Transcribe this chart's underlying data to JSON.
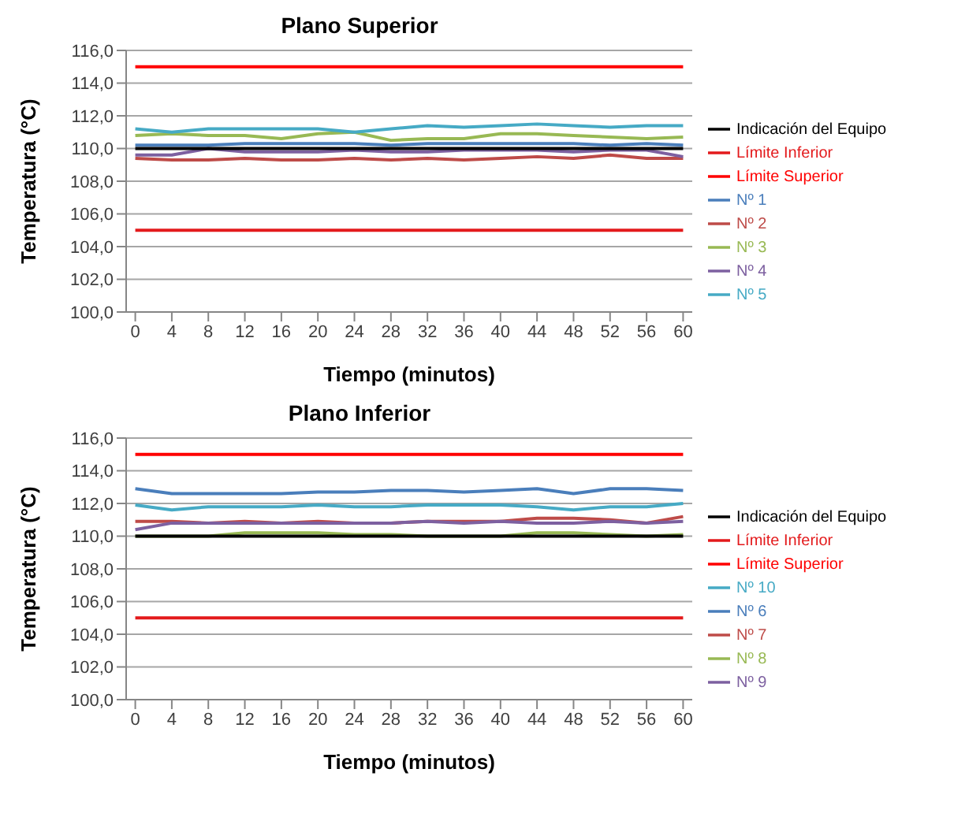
{
  "chart_data": [
    {
      "type": "line",
      "title": "Plano Superior",
      "xlabel": "Tiempo (minutos)",
      "ylabel": "Temperatura (°C)",
      "x": [
        0,
        4,
        8,
        12,
        16,
        20,
        24,
        28,
        32,
        36,
        40,
        44,
        48,
        52,
        56,
        60
      ],
      "xlim": [
        -1,
        61
      ],
      "xticks": [
        0,
        4,
        8,
        12,
        16,
        20,
        24,
        28,
        32,
        36,
        40,
        44,
        48,
        52,
        56,
        60
      ],
      "ylim": [
        100,
        116
      ],
      "yticks": [
        {
          "value": 100,
          "label": "100,0"
        },
        {
          "value": 102,
          "label": "102,0"
        },
        {
          "value": 104,
          "label": "104,0"
        },
        {
          "value": 106,
          "label": "106,0"
        },
        {
          "value": 108,
          "label": "108,0"
        },
        {
          "value": 110,
          "label": "110,0"
        },
        {
          "value": 112,
          "label": "112,0"
        },
        {
          "value": 114,
          "label": "114,0"
        },
        {
          "value": 116,
          "label": "116,0"
        }
      ],
      "grid": "y",
      "legend": "right",
      "series": [
        {
          "name": "Nº 1",
          "color": "#4a7ebb",
          "values": [
            110.2,
            110.2,
            110.2,
            110.3,
            110.3,
            110.3,
            110.3,
            110.2,
            110.3,
            110.3,
            110.3,
            110.3,
            110.3,
            110.2,
            110.3,
            110.2
          ]
        },
        {
          "name": "Nº 2",
          "color": "#be4b48",
          "values": [
            109.4,
            109.3,
            109.3,
            109.4,
            109.3,
            109.3,
            109.4,
            109.3,
            109.4,
            109.3,
            109.4,
            109.5,
            109.4,
            109.6,
            109.4,
            109.4
          ]
        },
        {
          "name": "Nº 3",
          "color": "#98b954",
          "values": [
            110.8,
            110.9,
            110.8,
            110.8,
            110.6,
            110.9,
            111.0,
            110.5,
            110.6,
            110.6,
            110.9,
            110.9,
            110.8,
            110.7,
            110.6,
            110.7
          ]
        },
        {
          "name": "Nº 4",
          "color": "#7d60a0",
          "values": [
            109.6,
            109.6,
            110.0,
            109.8,
            109.8,
            109.8,
            109.9,
            109.8,
            109.8,
            109.9,
            109.9,
            109.9,
            109.8,
            109.9,
            109.9,
            109.5
          ]
        },
        {
          "name": "Nº 5",
          "color": "#46aac5",
          "values": [
            111.2,
            111.0,
            111.2,
            111.2,
            111.2,
            111.2,
            111.0,
            111.2,
            111.4,
            111.3,
            111.4,
            111.5,
            111.4,
            111.3,
            111.4,
            111.4
          ]
        },
        {
          "name": "Indicación del Equipo",
          "color": "#000000",
          "values": [
            110,
            110,
            110,
            110,
            110,
            110,
            110,
            110,
            110,
            110,
            110,
            110,
            110,
            110,
            110,
            110
          ]
        },
        {
          "name": "Límite Superior",
          "color": "#ff0000",
          "values": [
            115,
            115,
            115,
            115,
            115,
            115,
            115,
            115,
            115,
            115,
            115,
            115,
            115,
            115,
            115,
            115
          ]
        },
        {
          "name": "Límite Inferior",
          "color": "#e31a1c",
          "values": [
            105,
            105,
            105,
            105,
            105,
            105,
            105,
            105,
            105,
            105,
            105,
            105,
            105,
            105,
            105,
            105
          ]
        }
      ]
    },
    {
      "type": "line",
      "title": "Plano Inferior",
      "xlabel": "Tiempo (minutos)",
      "ylabel": "Temperatura (°C)",
      "x": [
        0,
        4,
        8,
        12,
        16,
        20,
        24,
        28,
        32,
        36,
        40,
        44,
        48,
        52,
        56,
        60
      ],
      "xlim": [
        -1,
        61
      ],
      "xticks": [
        0,
        4,
        8,
        12,
        16,
        20,
        24,
        28,
        32,
        36,
        40,
        44,
        48,
        52,
        56,
        60
      ],
      "ylim": [
        100,
        116
      ],
      "yticks": [
        {
          "value": 100,
          "label": "100,0"
        },
        {
          "value": 102,
          "label": "102,0"
        },
        {
          "value": 104,
          "label": "104,0"
        },
        {
          "value": 106,
          "label": "106,0"
        },
        {
          "value": 108,
          "label": "108,0"
        },
        {
          "value": 110,
          "label": "110,0"
        },
        {
          "value": 112,
          "label": "112,0"
        },
        {
          "value": 114,
          "label": "114,0"
        },
        {
          "value": 116,
          "label": "116,0"
        }
      ],
      "grid": "y",
      "legend": "right",
      "series": [
        {
          "name": "Nº 6",
          "color": "#4a7ebb",
          "values": [
            112.9,
            112.6,
            112.6,
            112.6,
            112.6,
            112.7,
            112.7,
            112.8,
            112.8,
            112.7,
            112.8,
            112.9,
            112.6,
            112.9,
            112.9,
            112.8
          ]
        },
        {
          "name": "Nº 7",
          "color": "#be4b48",
          "values": [
            110.9,
            110.9,
            110.8,
            110.9,
            110.8,
            110.9,
            110.8,
            110.8,
            110.9,
            110.9,
            110.9,
            111.1,
            111.1,
            111.0,
            110.8,
            111.2
          ]
        },
        {
          "name": "Nº 8",
          "color": "#98b954",
          "values": [
            110.0,
            110.0,
            110.0,
            110.2,
            110.2,
            110.2,
            110.1,
            110.1,
            110.0,
            110.0,
            110.0,
            110.2,
            110.2,
            110.1,
            110.0,
            110.1
          ]
        },
        {
          "name": "Nº 9",
          "color": "#7d60a0",
          "values": [
            110.4,
            110.8,
            110.8,
            110.8,
            110.8,
            110.8,
            110.8,
            110.8,
            110.9,
            110.8,
            110.9,
            110.8,
            110.8,
            110.9,
            110.8,
            110.9
          ]
        },
        {
          "name": "Nº 10",
          "color": "#46aac5",
          "values": [
            111.9,
            111.6,
            111.8,
            111.8,
            111.8,
            111.9,
            111.8,
            111.8,
            111.9,
            111.9,
            111.9,
            111.8,
            111.6,
            111.8,
            111.8,
            112.0
          ]
        },
        {
          "name": "Indicación del Equipo",
          "color": "#000000",
          "values": [
            110,
            110,
            110,
            110,
            110,
            110,
            110,
            110,
            110,
            110,
            110,
            110,
            110,
            110,
            110,
            110
          ]
        },
        {
          "name": "Límite Superior",
          "color": "#ff0000",
          "values": [
            115,
            115,
            115,
            115,
            115,
            115,
            115,
            115,
            115,
            115,
            115,
            115,
            115,
            115,
            115,
            115
          ]
        },
        {
          "name": "Límite Inferior",
          "color": "#e31a1c",
          "values": [
            105,
            105,
            105,
            105,
            105,
            105,
            105,
            105,
            105,
            105,
            105,
            105,
            105,
            105,
            105,
            105
          ]
        }
      ]
    }
  ]
}
